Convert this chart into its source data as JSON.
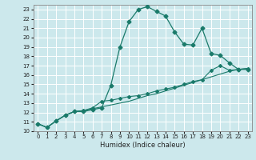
{
  "xlabel": "Humidex (Indice chaleur)",
  "bg_color": "#cce8ec",
  "grid_color": "#ffffff",
  "line_color": "#1a7a6a",
  "xlim": [
    -0.5,
    23.5
  ],
  "ylim": [
    10,
    23.5
  ],
  "x_ticks": [
    0,
    1,
    2,
    3,
    4,
    5,
    6,
    7,
    8,
    9,
    10,
    11,
    12,
    13,
    14,
    15,
    16,
    17,
    18,
    19,
    20,
    21,
    22,
    23
  ],
  "y_ticks": [
    10,
    11,
    12,
    13,
    14,
    15,
    16,
    17,
    18,
    19,
    20,
    21,
    22,
    23
  ],
  "line1_x": [
    0,
    1,
    2,
    3,
    4,
    5,
    6,
    7,
    8,
    9,
    10,
    11,
    12,
    13,
    14,
    15,
    16,
    17,
    18,
    19,
    20,
    21,
    22,
    23
  ],
  "line1_y": [
    10.8,
    10.4,
    11.1,
    11.7,
    12.1,
    12.1,
    12.3,
    12.5,
    14.9,
    19.0,
    21.7,
    23.0,
    23.3,
    22.8,
    22.3,
    20.6,
    19.3,
    19.2,
    21.0,
    18.3,
    18.1,
    17.3,
    16.6,
    16.6
  ],
  "line2_x": [
    0,
    1,
    2,
    3,
    4,
    5,
    6,
    7,
    8,
    9,
    10,
    11,
    12,
    13,
    14,
    15,
    16,
    17,
    18,
    19,
    20,
    21,
    22,
    23
  ],
  "line2_y": [
    10.8,
    10.4,
    11.1,
    11.7,
    12.1,
    12.2,
    12.5,
    13.2,
    13.3,
    13.5,
    13.7,
    13.8,
    14.0,
    14.3,
    14.5,
    14.7,
    15.0,
    15.3,
    15.5,
    16.5,
    17.0,
    16.5,
    16.6,
    16.7
  ],
  "line3_x": [
    0,
    1,
    2,
    3,
    4,
    5,
    6,
    7,
    8,
    9,
    10,
    11,
    12,
    13,
    14,
    15,
    16,
    17,
    18,
    19,
    20,
    21,
    22,
    23
  ],
  "line3_y": [
    10.8,
    10.4,
    11.1,
    11.7,
    12.1,
    12.2,
    12.4,
    12.6,
    12.8,
    13.0,
    13.2,
    13.5,
    13.8,
    14.0,
    14.3,
    14.6,
    14.9,
    15.2,
    15.5,
    15.8,
    16.1,
    16.4,
    16.6,
    16.7
  ]
}
